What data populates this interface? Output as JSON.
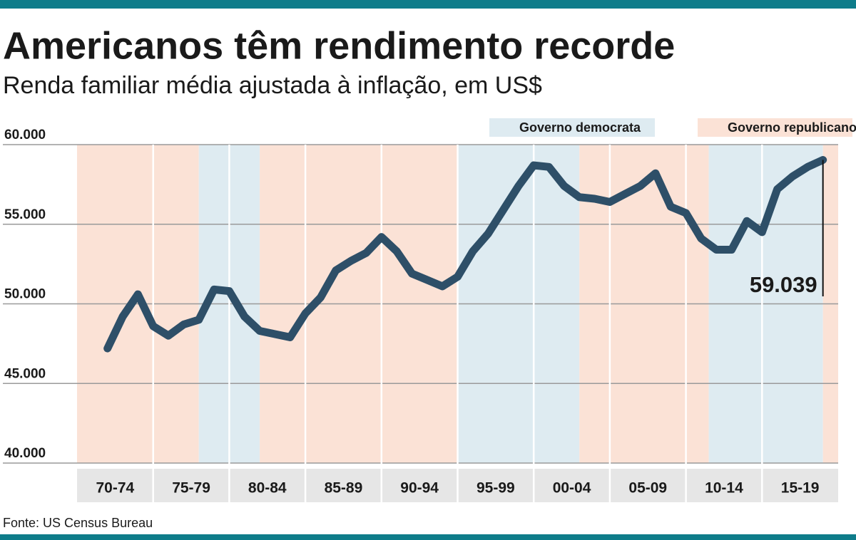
{
  "chart_data": {
    "type": "line",
    "title": "Americanos têm rendimento recorde",
    "subtitle": "Renda familiar média ajustada à inflação, em US$",
    "source": "Fonte: US Census Bureau",
    "legend": [
      {
        "label": "Governo democrata",
        "color": "#deebf1"
      },
      {
        "label": "Governo republicano",
        "color": "#fbe2d6"
      }
    ],
    "periods": [
      {
        "start": 1970,
        "end": 1978,
        "legend": 1
      },
      {
        "start": 1978,
        "end": 1982,
        "legend": 0
      },
      {
        "start": 1982,
        "end": 1995,
        "legend": 1
      },
      {
        "start": 1995,
        "end": 2003,
        "legend": 0
      },
      {
        "start": 2003,
        "end": 2011.5,
        "legend": 1
      },
      {
        "start": 2011.5,
        "end": 2019,
        "legend": 0
      },
      {
        "start": 2019,
        "end": 2020,
        "legend": 1
      }
    ],
    "x_bands": [
      "70-74",
      "75-79",
      "80-84",
      "85-89",
      "90-94",
      "95-99",
      "00-04",
      "05-09",
      "10-14",
      "15-19"
    ],
    "x": [
      1972,
      1973,
      1974,
      1975,
      1976,
      1977,
      1978,
      1979,
      1980,
      1981,
      1982,
      1983,
      1984,
      1985,
      1986,
      1987,
      1988,
      1989,
      1990,
      1991,
      1992,
      1993,
      1994,
      1995,
      1996,
      1997,
      1998,
      1999,
      2000,
      2001,
      2002,
      2003,
      2004,
      2005,
      2006,
      2007,
      2008,
      2009,
      2010,
      2011,
      2012,
      2013,
      2014,
      2015,
      2016,
      2017,
      2018,
      2019
    ],
    "series": [
      {
        "name": "Renda familiar média",
        "color": "#2e4f68",
        "values": [
          47200,
          49200,
          50600,
          48600,
          48000,
          48700,
          49000,
          50900,
          50800,
          49200,
          48300,
          48100,
          47900,
          49400,
          50400,
          52100,
          52700,
          53200,
          54200,
          53300,
          51900,
          51500,
          51100,
          51700,
          53300,
          54400,
          55900,
          57400,
          58700,
          58600,
          57400,
          56700,
          56600,
          56400,
          56900,
          57400,
          58200,
          56100,
          55700,
          54100,
          53400,
          53400,
          55200,
          54500,
          57200,
          58000,
          58600,
          59039
        ],
        "value_labels": [
          null,
          null,
          null,
          null,
          null,
          null,
          null,
          null,
          null,
          null,
          null,
          null,
          null,
          null,
          null,
          null,
          null,
          null,
          null,
          null,
          null,
          null,
          null,
          null,
          null,
          null,
          null,
          null,
          null,
          null,
          null,
          null,
          null,
          null,
          null,
          null,
          null,
          null,
          null,
          null,
          null,
          null,
          null,
          null,
          null,
          null,
          null,
          "59.039"
        ]
      }
    ],
    "xlim": [
      1970,
      2020
    ],
    "ylim": [
      40000,
      60000
    ],
    "yticks": [
      {
        "value": 40000,
        "label": "40.000"
      },
      {
        "value": 45000,
        "label": "45.000"
      },
      {
        "value": 50000,
        "label": "50.000"
      },
      {
        "value": 55000,
        "label": "55.000"
      },
      {
        "value": 60000,
        "label": "60.000"
      }
    ],
    "grid": true
  }
}
